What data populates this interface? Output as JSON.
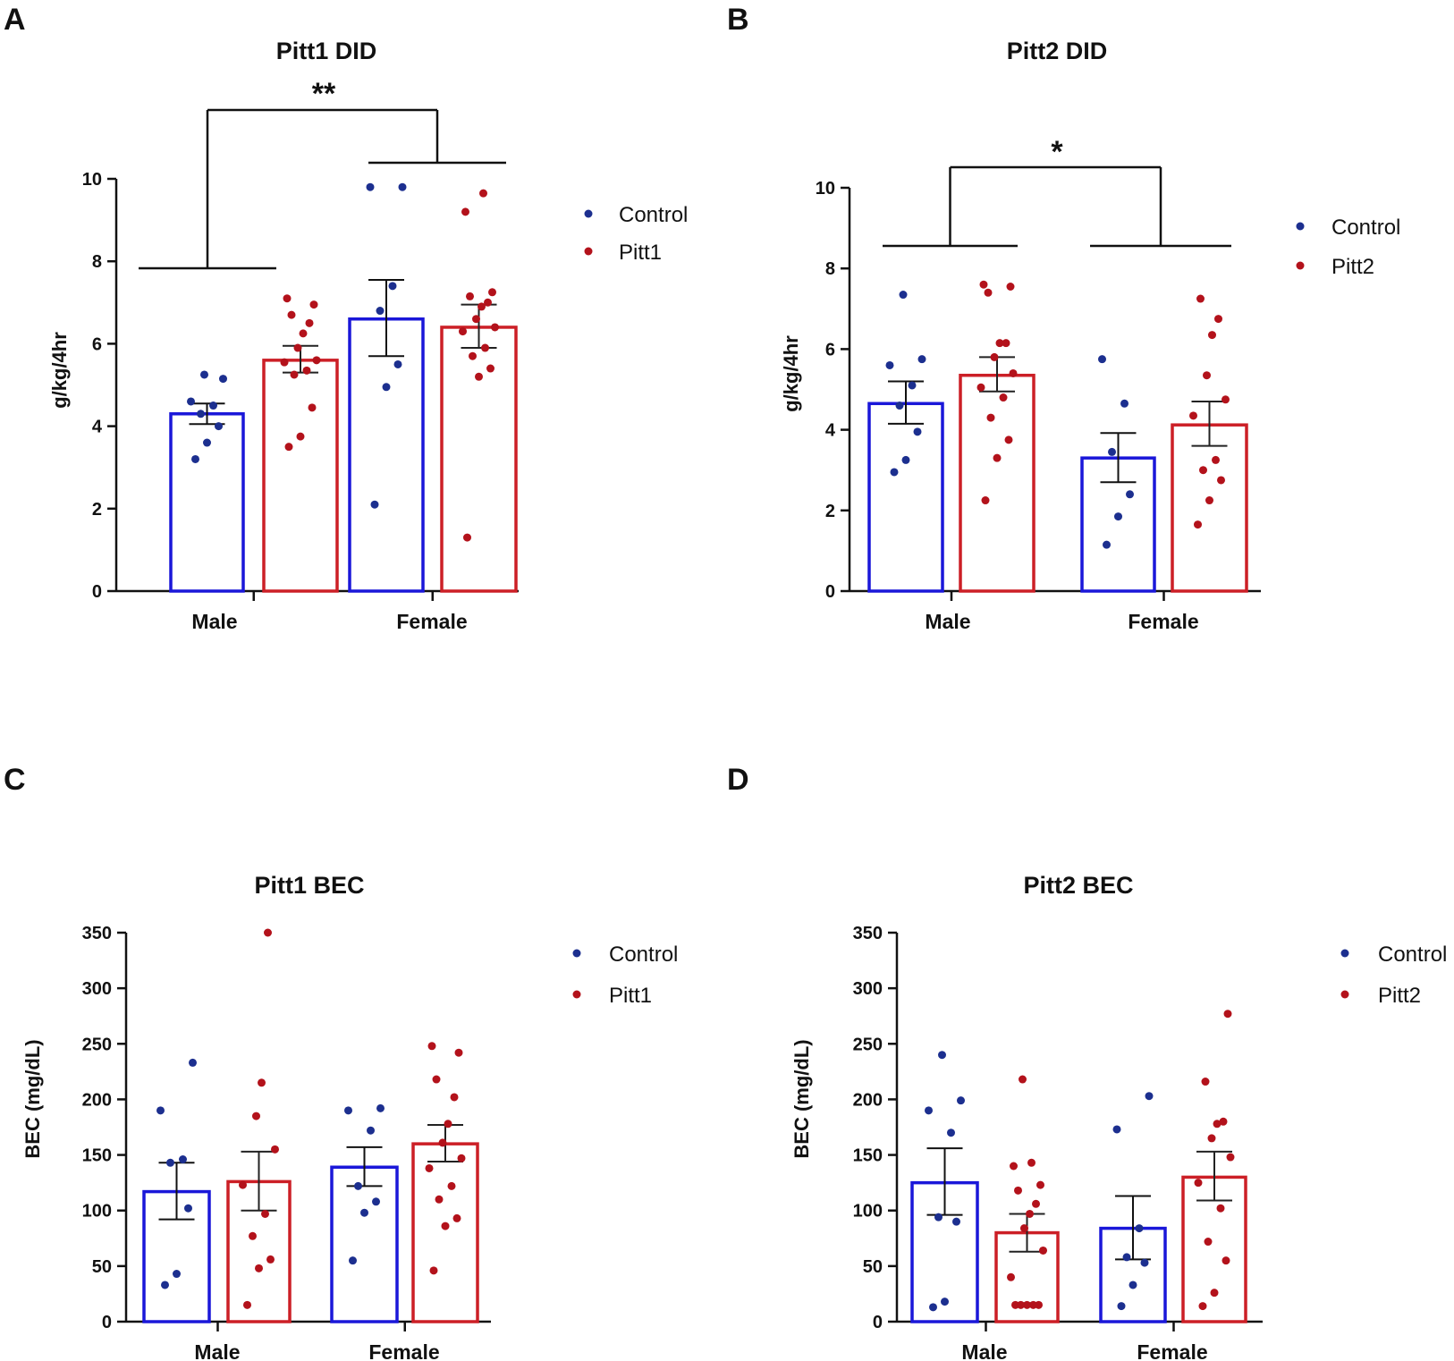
{
  "colors": {
    "control": "#1a17d9",
    "treatment": "#cc1f26",
    "control_dot": "#1c2f8f",
    "treatment_dot": "#b3121b",
    "axis": "#111111"
  },
  "chart_data": [
    {
      "panel": "A",
      "type": "bar",
      "title": "Pitt1 DID",
      "ylabel": "g/kg/4hr",
      "xlabel": "",
      "ylim": [
        0,
        10
      ],
      "yticks": [
        "0",
        "2",
        "4",
        "6",
        "8",
        "10"
      ],
      "categories": [
        "Male",
        "Female"
      ],
      "series": [
        {
          "name": "Control",
          "values": [
            4.3,
            6.6
          ],
          "sem_low": [
            4.05,
            5.7
          ],
          "sem_high": [
            4.55,
            7.55
          ],
          "points": [
            [
              3.2,
              3.6,
              4.0,
              4.3,
              4.5,
              4.6,
              5.15,
              5.25
            ],
            [
              2.1,
              4.95,
              5.5,
              6.8,
              7.4,
              9.8,
              9.8
            ]
          ]
        },
        {
          "name": "Pitt1",
          "values": [
            5.6,
            6.4
          ],
          "sem_low": [
            5.3,
            5.9
          ],
          "sem_high": [
            5.95,
            6.95
          ],
          "points": [
            [
              3.5,
              3.75,
              4.45,
              5.25,
              5.35,
              5.55,
              5.6,
              5.9,
              6.25,
              6.5,
              6.7,
              6.95,
              7.1
            ],
            [
              1.3,
              5.2,
              5.4,
              5.7,
              5.9,
              6.3,
              6.4,
              6.6,
              6.9,
              7.0,
              7.15,
              7.25,
              9.2,
              9.65
            ]
          ]
        }
      ],
      "legend": [
        "Control",
        "Pitt1"
      ],
      "significance": [
        {
          "label": "**",
          "left_bracket_y": 7.85,
          "right_bracket_y": 10.4,
          "top_y": 11.7
        }
      ]
    },
    {
      "panel": "B",
      "type": "bar",
      "title": "Pitt2 DID",
      "ylabel": "g/kg/4hr",
      "xlabel": "",
      "ylim": [
        0,
        10
      ],
      "yticks": [
        "0",
        "2",
        "4",
        "6",
        "8",
        "10"
      ],
      "categories": [
        "Male",
        "Female"
      ],
      "series": [
        {
          "name": "Control",
          "values": [
            4.65,
            3.3
          ],
          "sem_low": [
            4.15,
            2.7
          ],
          "sem_high": [
            5.2,
            3.92
          ],
          "points": [
            [
              2.95,
              3.25,
              3.95,
              4.6,
              5.1,
              5.6,
              5.75,
              7.35
            ],
            [
              1.15,
              1.85,
              2.4,
              3.45,
              4.65,
              5.75
            ]
          ]
        },
        {
          "name": "Pitt2",
          "values": [
            5.35,
            4.12
          ],
          "sem_low": [
            4.95,
            3.6
          ],
          "sem_high": [
            5.8,
            4.7
          ],
          "points": [
            [
              2.25,
              3.3,
              3.75,
              4.3,
              4.8,
              5.05,
              5.4,
              5.8,
              6.15,
              6.15,
              7.4,
              7.55,
              7.6
            ],
            [
              1.65,
              2.25,
              2.75,
              3.0,
              3.25,
              4.35,
              4.75,
              5.35,
              6.35,
              6.75,
              7.25
            ]
          ]
        }
      ],
      "legend": [
        "Control",
        "Pitt2"
      ],
      "significance": [
        {
          "label": "*",
          "left_bracket_y": 8.5,
          "right_bracket_y": 8.5,
          "top_y": 10.5
        }
      ]
    },
    {
      "panel": "C",
      "type": "bar",
      "title": "Pitt1 BEC",
      "ylabel": "BEC (mg/dL)",
      "xlabel": "",
      "ylim": [
        0,
        350
      ],
      "yticks": [
        "0",
        "50",
        "100",
        "150",
        "200",
        "250",
        "300",
        "350"
      ],
      "categories": [
        "Male",
        "Female"
      ],
      "series": [
        {
          "name": "Control",
          "values": [
            117,
            139
          ],
          "sem_low": [
            92,
            122
          ],
          "sem_high": [
            143,
            157
          ],
          "points": [
            [
              33,
              43,
              102,
              143,
              146,
              190,
              233
            ],
            [
              55,
              98,
              108,
              122,
              172,
              190,
              192
            ]
          ]
        },
        {
          "name": "Pitt1",
          "values": [
            126,
            160
          ],
          "sem_low": [
            100,
            144
          ],
          "sem_high": [
            153,
            177
          ],
          "points": [
            [
              15,
              48,
              56,
              77,
              97,
              123,
              155,
              185,
              215,
              350
            ],
            [
              46,
              86,
              93,
              110,
              122,
              138,
              147,
              161,
              178,
              202,
              218,
              242,
              248
            ]
          ]
        }
      ],
      "legend": [
        "Control",
        "Pitt1"
      ],
      "significance": []
    },
    {
      "panel": "D",
      "type": "bar",
      "title": "Pitt2 BEC",
      "ylabel": "BEC (mg/dL)",
      "xlabel": "",
      "ylim": [
        0,
        350
      ],
      "yticks": [
        "0",
        "50",
        "100",
        "150",
        "200",
        "250",
        "300",
        "350"
      ],
      "categories": [
        "Male",
        "Female"
      ],
      "series": [
        {
          "name": "Control",
          "values": [
            125,
            84
          ],
          "sem_low": [
            96,
            56
          ],
          "sem_high": [
            156,
            113
          ],
          "points": [
            [
              13,
              18,
              90,
              94,
              170,
              190,
              199,
              240
            ],
            [
              14,
              33,
              53,
              58,
              84,
              173,
              203
            ]
          ]
        },
        {
          "name": "Pitt2",
          "values": [
            80,
            130
          ],
          "sem_low": [
            63,
            109
          ],
          "sem_high": [
            97,
            153
          ],
          "points": [
            [
              15,
              15,
              15,
              15,
              15,
              40,
              64,
              84,
              97,
              106,
              118,
              123,
              140,
              143,
              218
            ],
            [
              14,
              26,
              55,
              72,
              102,
              125,
              148,
              165,
              178,
              180,
              216,
              277
            ]
          ]
        }
      ],
      "legend": [
        "Control",
        "Pitt2"
      ],
      "significance": []
    }
  ]
}
